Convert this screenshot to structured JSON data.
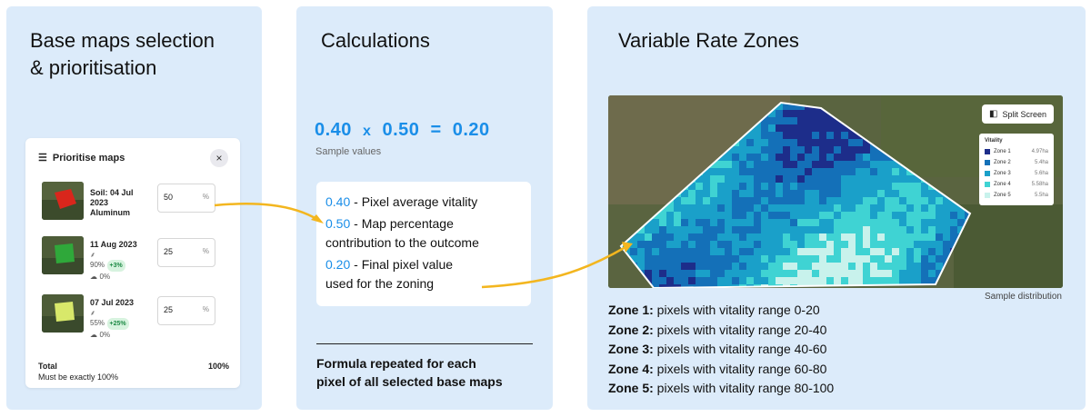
{
  "panel1": {
    "title_line1": "Base maps selection",
    "title_line2": "& prioritisation",
    "card": {
      "title": "Prioritise maps",
      "icon": "list-priority-icon",
      "close": "×",
      "maps": [
        {
          "date": "Soil: 04 Jul 2023",
          "extra": "Aluminum",
          "percent": "50",
          "unit": "%",
          "vitality": "",
          "change": "",
          "count": "",
          "color": "#d9261c"
        },
        {
          "date": "11 Aug 2023",
          "extra": "",
          "percent": "25",
          "unit": "%",
          "vitality": "90%",
          "change": "+3%",
          "count": "0%",
          "color": "#2fa83a"
        },
        {
          "date": "07 Jul 2023",
          "extra": "",
          "percent": "25",
          "unit": "%",
          "vitality": "55%",
          "change": "+25%",
          "count": "0%",
          "color": "#d8e86a"
        }
      ],
      "total_label": "Total",
      "total_value": "100%",
      "must_be": "Must be exactly 100%"
    }
  },
  "panel2": {
    "title": "Calculations",
    "equation": {
      "a": "0.40",
      "x": "x",
      "b": "0.50",
      "eq": "=",
      "c": "0.20"
    },
    "sample_values": "Sample values",
    "lines": [
      {
        "n": "0.40",
        "t": " - Pixel average vitality"
      },
      {
        "n": "0.50",
        "t": " - Map percentage"
      },
      {
        "n": "",
        "t": "contribution to the outcome"
      },
      {
        "n": "0.20",
        "t": " - Final pixel value"
      },
      {
        "n": "",
        "t": "used for the zoning"
      }
    ],
    "formula_line1": "Formula repeated for each",
    "formula_line2": "pixel of all selected base maps"
  },
  "panel3": {
    "title": "Variable Rate Zones",
    "split_screen": "Split Screen",
    "legend_title": "Vitality",
    "legend": [
      {
        "name": "Zone 1",
        "ha": "4.97ha",
        "color": "#1d2d8a"
      },
      {
        "name": "Zone 2",
        "ha": "5.4ha",
        "color": "#1470b8"
      },
      {
        "name": "Zone 3",
        "ha": "5.6ha",
        "color": "#1aa0c9"
      },
      {
        "name": "Zone 4",
        "ha": "5.58ha",
        "color": "#3fd3d3"
      },
      {
        "name": "Zone 5",
        "ha": "5.5ha",
        "color": "#c8f2ec"
      }
    ],
    "sample_distribution": "Sample distribution",
    "zones": [
      {
        "label": "Zone 1:",
        "text": " pixels with vitality range 0-20"
      },
      {
        "label": "Zone 2:",
        "text": " pixels with vitality range 20-40"
      },
      {
        "label": "Zone 3:",
        "text": " pixels with vitality range 40-60"
      },
      {
        "label": "Zone 4:",
        "text": " pixels with vitality range 60-80"
      },
      {
        "label": "Zone 5:",
        "text": " pixels with vitality range 80-100"
      }
    ]
  },
  "colors": {
    "panel_bg": "#dcebfa",
    "accent": "#1a8ee8",
    "arrow": "#f3b61f"
  }
}
